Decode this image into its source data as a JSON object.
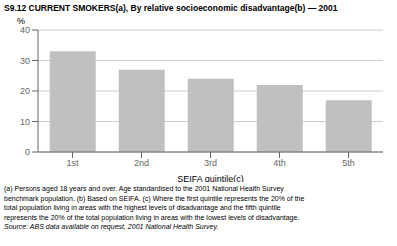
{
  "chart_data": {
    "type": "bar",
    "title": "S9.12  CURRENT SMOKERS(a), By relative socioeconomic disadvantage(b) — 2001",
    "categories": [
      "1st",
      "2nd",
      "3rd",
      "4th",
      "5th"
    ],
    "values": [
      33.0,
      27.0,
      24.0,
      22.0,
      17.0
    ],
    "color": "#c0c0c0",
    "xlabel": "SEIFA quintile(c)",
    "ylabel": "%",
    "ylim": [
      0,
      40
    ],
    "yticks": [
      0,
      10,
      20,
      30,
      40
    ],
    "grid": true,
    "footnotes": [
      "(a) Persons aged 18 years and over. Age standardised to the 2001 National Health Survey",
      "benchmark population. (b) Based on SEIFA. (c) Where the first quintile represents the 20% of the",
      "total population living in areas with the highest levels of disadvantage and the fifth quintile",
      "represents the 20% of the total population living in areas with the lowest levels of disadvantage."
    ],
    "source": "Source: ABS data available on request, 2001 National Health Survey."
  }
}
